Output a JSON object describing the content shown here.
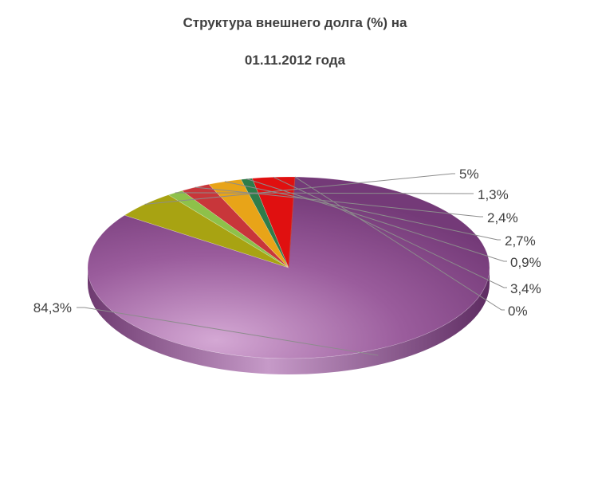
{
  "chart_data": {
    "type": "pie",
    "title": "Структура внешнего долга (%) на",
    "subtitle": "01.11.2012  года",
    "slices": [
      {
        "label": "84,3%",
        "value": 84.3,
        "color": "#8a4a8c"
      },
      {
        "label": "5%",
        "value": 5.0,
        "color": "#a8a312"
      },
      {
        "label": "1,3%",
        "value": 1.3,
        "color": "#8ec14a"
      },
      {
        "label": "2,4%",
        "value": 2.4,
        "color": "#c8363a"
      },
      {
        "label": "2,7%",
        "value": 2.7,
        "color": "#e8a418"
      },
      {
        "label": "0,9%",
        "value": 0.9,
        "color": "#2e7d4a"
      },
      {
        "label": "3,4%",
        "value": 3.4,
        "color": "#e01010"
      },
      {
        "label": "0%",
        "value": 0.0,
        "color": "#c04040"
      }
    ]
  }
}
